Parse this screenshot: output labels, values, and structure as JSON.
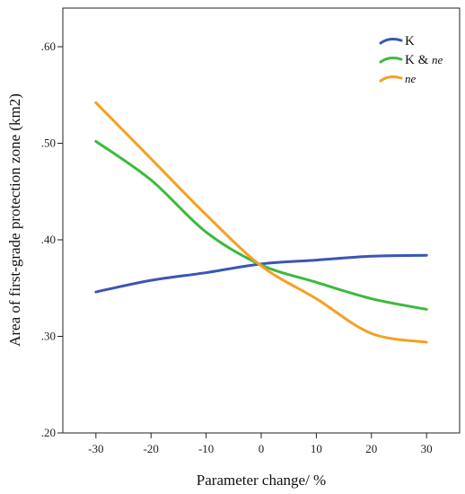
{
  "chart_data": {
    "type": "line",
    "title": "",
    "xlabel": "Parameter change/ %",
    "ylabel": "Area of first-grade protection zone (km2)",
    "x": [
      -30,
      -20,
      -10,
      0,
      10,
      20,
      30
    ],
    "xlim": [
      -36,
      36
    ],
    "ylim": [
      0.2,
      0.64
    ],
    "x_ticks": [
      -30,
      -20,
      -10,
      0,
      10,
      20,
      30
    ],
    "x_tick_labels": [
      "-30",
      "-20",
      "-10",
      "0",
      "10",
      "20",
      "30"
    ],
    "y_ticks": [
      0.2,
      0.3,
      0.4,
      0.5,
      0.6
    ],
    "y_tick_labels": [
      ".20",
      ".30",
      ".40",
      ".50",
      ".60"
    ],
    "grid": false,
    "legend_position": "top-right",
    "series": [
      {
        "name": "K",
        "name_main": "K",
        "name_sub": "",
        "color": "#3a56b4",
        "values": [
          0.346,
          0.358,
          0.366,
          0.375,
          0.379,
          0.383,
          0.384
        ]
      },
      {
        "name": "K & ne",
        "name_main": "K & ",
        "name_sub": "ne",
        "color": "#3cba3c",
        "values": [
          0.502,
          0.462,
          0.408,
          0.374,
          0.356,
          0.339,
          0.328
        ]
      },
      {
        "name": "ne",
        "name_main": "",
        "name_sub": "ne",
        "color": "#f5a023",
        "values": [
          0.542,
          0.484,
          0.426,
          0.373,
          0.339,
          0.303,
          0.294
        ]
      }
    ]
  }
}
